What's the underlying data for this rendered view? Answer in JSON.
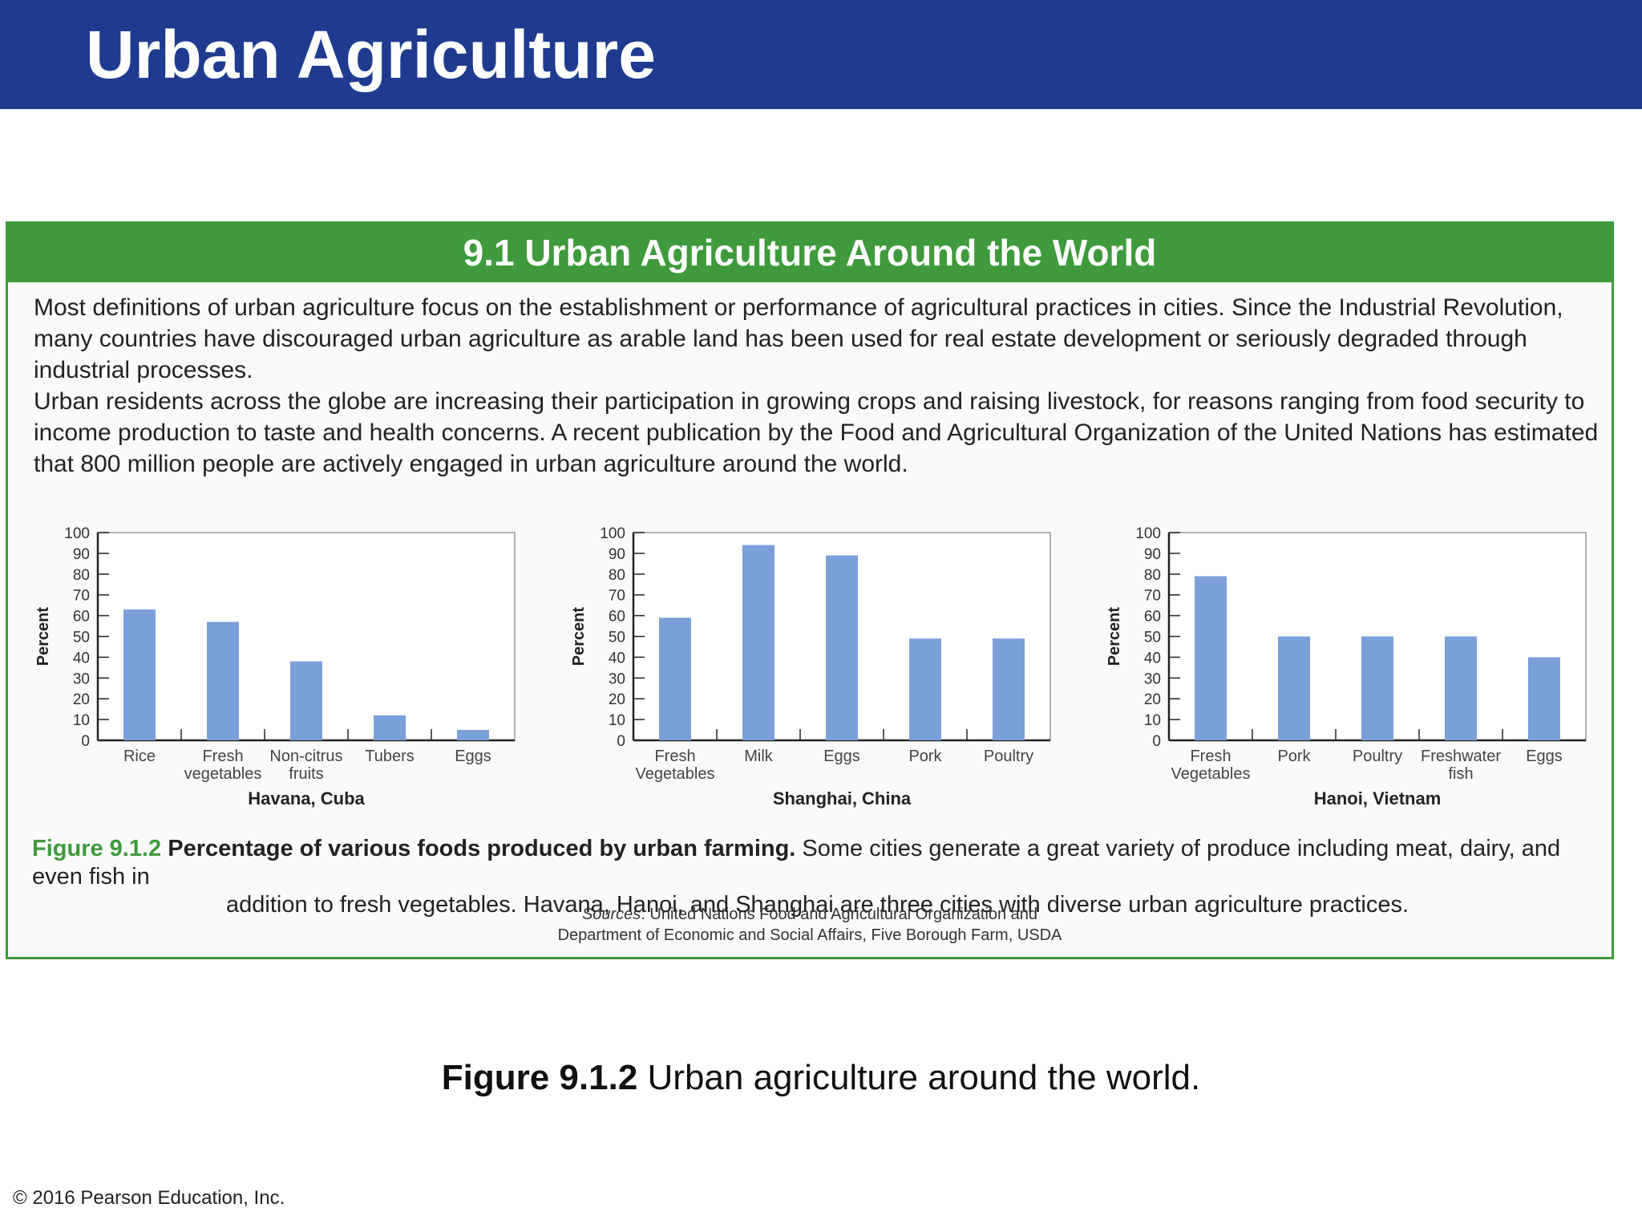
{
  "slide": {
    "title": "Urban Agriculture",
    "bottom_caption_bold": "Figure 9.1.2",
    "bottom_caption_rest": " Urban agriculture around the world.",
    "copyright": "© 2016 Pearson Education, Inc."
  },
  "panel": {
    "title": "9.1 Urban Agriculture Around the World",
    "paragraph_1": "Most definitions of urban agriculture focus on the establishment or performance of agricultural practices in cities. Since the Industrial Revolution, many countries have discouraged urban agriculture as arable land has been used for real estate development or seriously degraded through industrial processes.",
    "paragraph_2": "Urban residents across the globe are increasing their participation in growing crops and raising livestock, for reasons ranging from food security to income production to taste and health concerns. A recent publication by the Food and Agricultural Organization of the United Nations has estimated that 800 million people are actively engaged in urban agriculture around the world.",
    "figure_label": "Figure 9.1.2",
    "figure_headline": "Percentage of various foods produced by urban farming.",
    "figure_text_1": " Some cities generate a great variety of produce including meat, dairy, and even fish in",
    "figure_text_2": "addition to fresh vegetables. Havana, Hanoi, and Shanghai are three cities with diverse urban agriculture practices.",
    "sources_prefix": "Sources",
    "sources_line_1": ": United Nations Food and Agricultural Organization and",
    "sources_line_2": "Department of Economic and Social Affairs, Five Borough Farm, USDA"
  },
  "colors": {
    "title_bar": "#1f3b8f",
    "panel_green": "#3e9a3c",
    "bar": "#7b9fd8"
  },
  "chart_data": [
    {
      "type": "bar",
      "title": "Havana, Cuba",
      "ylabel": "Percent",
      "ylim": [
        0,
        100
      ],
      "yticks": [
        0,
        10,
        20,
        30,
        40,
        50,
        60,
        70,
        80,
        90,
        100
      ],
      "categories": [
        [
          "Rice"
        ],
        [
          "Fresh",
          "vegetables"
        ],
        [
          "Non-citrus",
          "fruits"
        ],
        [
          "Tubers"
        ],
        [
          "Eggs"
        ]
      ],
      "values": [
        63,
        57,
        38,
        12,
        5
      ]
    },
    {
      "type": "bar",
      "title": "Shanghai, China",
      "ylabel": "Percent",
      "ylim": [
        0,
        100
      ],
      "yticks": [
        0,
        10,
        20,
        30,
        40,
        50,
        60,
        70,
        80,
        90,
        100
      ],
      "categories": [
        [
          "Fresh",
          "Vegetables"
        ],
        [
          "Milk"
        ],
        [
          "Eggs"
        ],
        [
          "Pork"
        ],
        [
          "Poultry"
        ]
      ],
      "values": [
        59,
        94,
        89,
        49,
        49
      ]
    },
    {
      "type": "bar",
      "title": "Hanoi, Vietnam",
      "ylabel": "Percent",
      "ylim": [
        0,
        100
      ],
      "yticks": [
        0,
        10,
        20,
        30,
        40,
        50,
        60,
        70,
        80,
        90,
        100
      ],
      "categories": [
        [
          "Fresh",
          "Vegetables"
        ],
        [
          "Pork"
        ],
        [
          "Poultry"
        ],
        [
          "Freshwater",
          "fish"
        ],
        [
          "Eggs"
        ]
      ],
      "values": [
        79,
        50,
        50,
        50,
        40
      ]
    }
  ]
}
